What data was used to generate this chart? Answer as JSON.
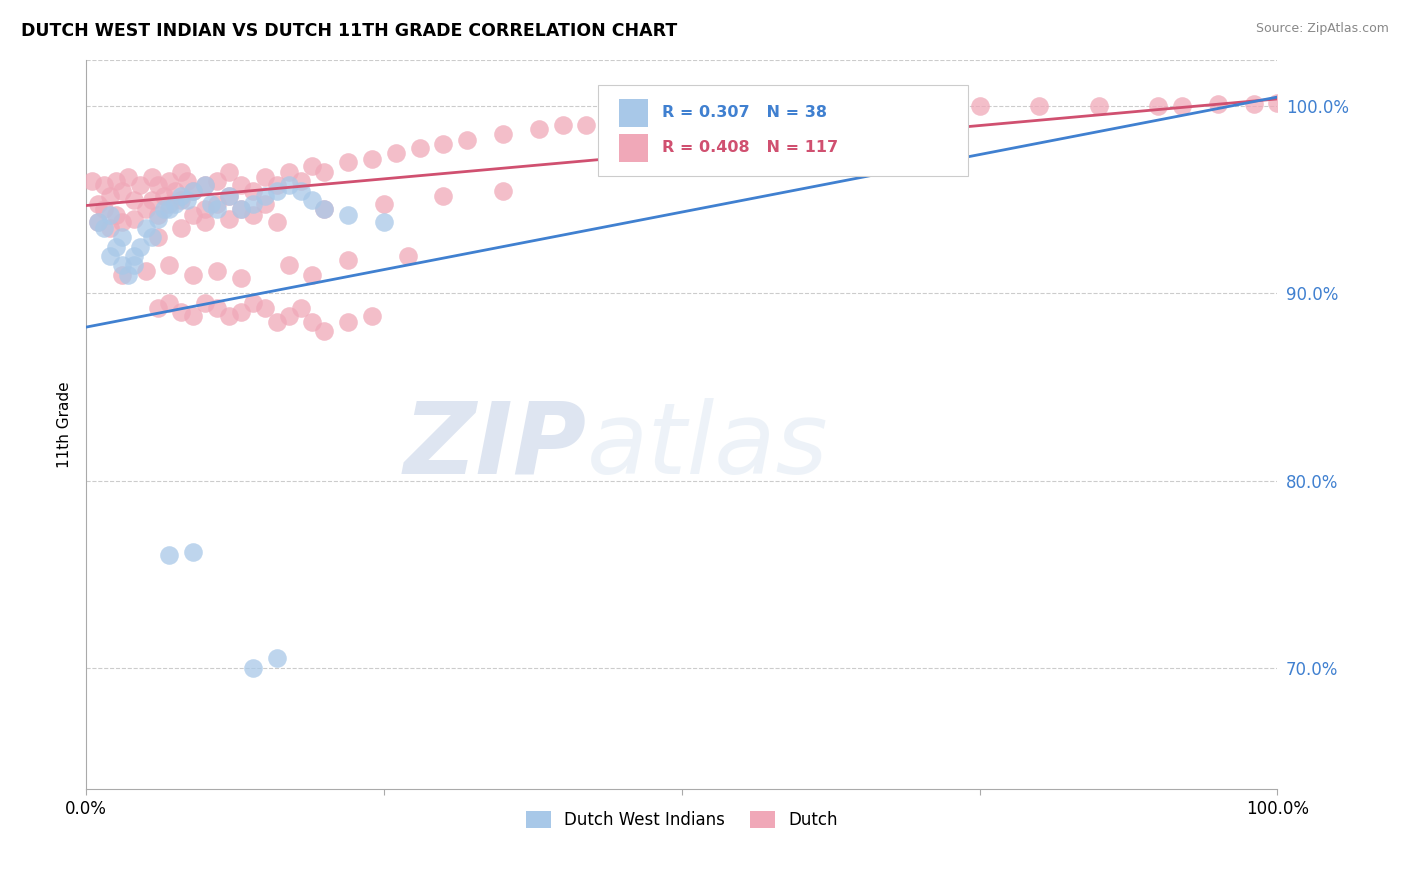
{
  "title": "DUTCH WEST INDIAN VS DUTCH 11TH GRADE CORRELATION CHART",
  "source": "Source: ZipAtlas.com",
  "ylabel": "11th Grade",
  "xlim": [
    0.0,
    1.0
  ],
  "ylim": [
    0.635,
    1.025
  ],
  "xtick_labels": [
    "0.0%",
    "100.0%"
  ],
  "ytick_labels": [
    "70.0%",
    "80.0%",
    "90.0%",
    "100.0%"
  ],
  "ytick_positions": [
    0.7,
    0.8,
    0.9,
    1.0
  ],
  "legend_blue_label": "Dutch West Indians",
  "legend_pink_label": "Dutch",
  "r_blue": "R = 0.307",
  "n_blue": "N = 38",
  "r_pink": "R = 0.408",
  "n_pink": "N = 117",
  "blue_color": "#A8C8E8",
  "pink_color": "#F0A8B8",
  "blue_line_color": "#4080D0",
  "pink_line_color": "#D05070",
  "watermark_zip": "ZIP",
  "watermark_atlas": "atlas",
  "background_color": "#FFFFFF",
  "grid_color": "#CCCCCC",
  "blue_line_x0": 0.0,
  "blue_line_y0": 0.882,
  "blue_line_x1": 1.0,
  "blue_line_y1": 1.005,
  "pink_line_x0": 0.0,
  "pink_line_y0": 0.947,
  "pink_line_x1": 1.0,
  "pink_line_y1": 1.004,
  "blue_scatter_x": [
    0.01,
    0.015,
    0.02,
    0.02,
    0.025,
    0.03,
    0.03,
    0.035,
    0.04,
    0.04,
    0.045,
    0.05,
    0.055,
    0.06,
    0.065,
    0.07,
    0.075,
    0.08,
    0.085,
    0.09,
    0.1,
    0.105,
    0.11,
    0.12,
    0.13,
    0.14,
    0.15,
    0.16,
    0.17,
    0.18,
    0.19,
    0.2,
    0.22,
    0.25,
    0.07,
    0.09,
    0.14,
    0.16
  ],
  "blue_scatter_y": [
    0.938,
    0.935,
    0.942,
    0.92,
    0.925,
    0.93,
    0.915,
    0.91,
    0.92,
    0.915,
    0.925,
    0.935,
    0.93,
    0.94,
    0.945,
    0.945,
    0.948,
    0.952,
    0.95,
    0.955,
    0.958,
    0.948,
    0.945,
    0.952,
    0.945,
    0.948,
    0.952,
    0.955,
    0.958,
    0.955,
    0.95,
    0.945,
    0.942,
    0.938,
    0.76,
    0.762,
    0.7,
    0.705
  ],
  "pink_scatter_x": [
    0.005,
    0.01,
    0.01,
    0.015,
    0.015,
    0.02,
    0.02,
    0.025,
    0.025,
    0.03,
    0.03,
    0.035,
    0.04,
    0.04,
    0.045,
    0.05,
    0.055,
    0.055,
    0.06,
    0.06,
    0.065,
    0.07,
    0.07,
    0.075,
    0.08,
    0.08,
    0.085,
    0.09,
    0.09,
    0.1,
    0.1,
    0.11,
    0.11,
    0.12,
    0.12,
    0.13,
    0.13,
    0.14,
    0.15,
    0.15,
    0.16,
    0.17,
    0.18,
    0.19,
    0.2,
    0.22,
    0.24,
    0.26,
    0.28,
    0.3,
    0.32,
    0.35,
    0.38,
    0.4,
    0.42,
    0.45,
    0.5,
    0.55,
    0.6,
    0.65,
    0.7,
    0.72,
    0.75,
    0.8,
    0.85,
    0.9,
    0.92,
    0.95,
    0.98,
    1.0,
    0.06,
    0.08,
    0.1,
    0.12,
    0.14,
    0.16,
    0.2,
    0.25,
    0.3,
    0.35,
    0.03,
    0.05,
    0.07,
    0.09,
    0.11,
    0.13,
    0.17,
    0.19,
    0.22,
    0.27,
    0.06,
    0.07,
    0.08,
    0.09,
    0.1,
    0.11,
    0.12,
    0.13,
    0.14,
    0.15,
    0.16,
    0.17,
    0.18,
    0.19,
    0.2,
    0.22,
    0.24
  ],
  "pink_scatter_y": [
    0.96,
    0.948,
    0.938,
    0.958,
    0.945,
    0.952,
    0.935,
    0.96,
    0.942,
    0.955,
    0.938,
    0.962,
    0.95,
    0.94,
    0.958,
    0.945,
    0.962,
    0.95,
    0.958,
    0.942,
    0.952,
    0.96,
    0.948,
    0.955,
    0.965,
    0.95,
    0.96,
    0.955,
    0.942,
    0.958,
    0.945,
    0.96,
    0.948,
    0.965,
    0.952,
    0.958,
    0.945,
    0.955,
    0.962,
    0.948,
    0.958,
    0.965,
    0.96,
    0.968,
    0.965,
    0.97,
    0.972,
    0.975,
    0.978,
    0.98,
    0.982,
    0.985,
    0.988,
    0.99,
    0.99,
    0.992,
    0.995,
    0.997,
    0.998,
    0.998,
    0.999,
    0.999,
    1.0,
    1.0,
    1.0,
    1.0,
    1.0,
    1.001,
    1.001,
    1.002,
    0.93,
    0.935,
    0.938,
    0.94,
    0.942,
    0.938,
    0.945,
    0.948,
    0.952,
    0.955,
    0.91,
    0.912,
    0.915,
    0.91,
    0.912,
    0.908,
    0.915,
    0.91,
    0.918,
    0.92,
    0.892,
    0.895,
    0.89,
    0.888,
    0.895,
    0.892,
    0.888,
    0.89,
    0.895,
    0.892,
    0.885,
    0.888,
    0.892,
    0.885,
    0.88,
    0.885,
    0.888
  ]
}
